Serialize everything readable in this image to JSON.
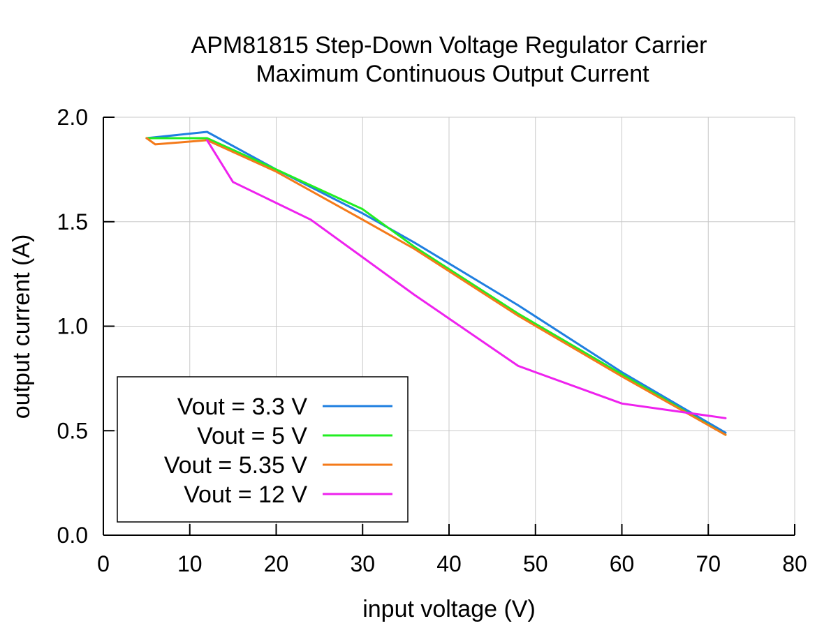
{
  "chart_data": {
    "type": "line",
    "title": "APM81815 Step-Down Voltage Regulator Carrier",
    "subtitle": "Maximum Continuous Output Current",
    "xlabel": "input voltage (V)",
    "ylabel": "output current (A)",
    "xlim": [
      0,
      80
    ],
    "ylim": [
      0,
      2.0
    ],
    "xticks": [
      0,
      10,
      20,
      30,
      40,
      50,
      60,
      70,
      80
    ],
    "xtick_labels": [
      "0",
      "10",
      "20",
      "30",
      "40",
      "50",
      "60",
      "70",
      "80"
    ],
    "yticks": [
      0,
      0.5,
      1.0,
      1.5,
      2.0
    ],
    "ytick_labels": [
      "0.0",
      "0.5",
      "1.0",
      "1.5",
      "2.0"
    ],
    "grid": true,
    "legend_position": "bottom-left",
    "series": [
      {
        "name": "Vout = 3.3 V",
        "color": "#1f7fe0",
        "x": [
          5,
          12,
          20,
          30,
          36,
          48,
          60,
          72
        ],
        "y": [
          1.9,
          1.93,
          1.75,
          1.54,
          1.4,
          1.1,
          0.78,
          0.49
        ]
      },
      {
        "name": "Vout = 5 V",
        "color": "#22ee22",
        "x": [
          5,
          12,
          20,
          30,
          32,
          36,
          48,
          60,
          72
        ],
        "y": [
          1.9,
          1.9,
          1.75,
          1.56,
          1.5,
          1.38,
          1.06,
          0.77,
          0.48
        ]
      },
      {
        "name": "Vout = 5.35 V",
        "color": "#f47a1a",
        "x": [
          5,
          6,
          12,
          20,
          30,
          36,
          48,
          60,
          72
        ],
        "y": [
          1.9,
          1.87,
          1.89,
          1.74,
          1.51,
          1.37,
          1.05,
          0.76,
          0.48
        ]
      },
      {
        "name": "Vout = 12 V",
        "color": "#ee22ee",
        "x": [
          12,
          15,
          24,
          36,
          48,
          60,
          72
        ],
        "y": [
          1.89,
          1.69,
          1.51,
          1.15,
          0.81,
          0.63,
          0.56
        ]
      }
    ]
  }
}
